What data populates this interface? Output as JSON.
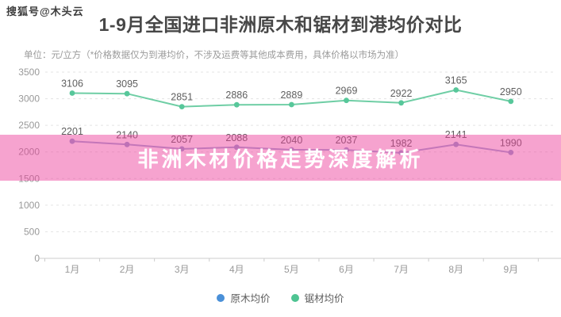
{
  "watermark": "搜狐号@木头云",
  "header": {
    "title": "1-9月全国进口非洲原木和锯材到港均价对比",
    "subtitle": "单位：元/立方（*价格数据仅为到港均价，不涉及运费等其他成本费用，具体价格以市场为准）"
  },
  "banner": {
    "text": "非洲木材价格走势深度解析",
    "bg_color": "#ec3e9a",
    "text_color": "#ffffff"
  },
  "chart_data": {
    "type": "line",
    "title": "1-9月全国进口非洲原木和锯材到港均价对比",
    "unit": "元/立方",
    "categories": [
      "1月",
      "2月",
      "3月",
      "4月",
      "5月",
      "6月",
      "7月",
      "8月",
      "9月"
    ],
    "series": [
      {
        "name": "原木均价",
        "line_color": "#9fa9d5",
        "dot_color": "#95a0d0",
        "legend_color": "#4a90d8",
        "values": [
          2201,
          2140,
          2057,
          2088,
          2040,
          2037,
          1982,
          2141,
          1990
        ]
      },
      {
        "name": "锯材均价",
        "line_color": "#6fceа5",
        "line_color_fix": "#6fcea5",
        "dot_color": "#57c79a",
        "legend_color": "#4ec492",
        "values": [
          3106,
          3095,
          2851,
          2886,
          2889,
          2969,
          2922,
          3165,
          2950
        ]
      }
    ],
    "ylim": [
      0,
      3500
    ],
    "ytick_step": 500,
    "grid": "horizontal-dashed",
    "grid_color": "#e3e3e3",
    "axis_color": "#cccccc",
    "tick_label_color": "#999999",
    "value_label_color": "#5f5f5f",
    "legend_position": "bottom"
  },
  "legend": {
    "items": [
      {
        "label": "原木均价",
        "color": "#4a90d8"
      },
      {
        "label": "锯材均价",
        "color": "#4ec492"
      }
    ]
  }
}
